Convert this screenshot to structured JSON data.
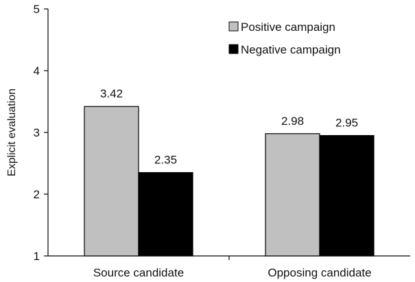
{
  "chart_data": {
    "type": "bar",
    "categories": [
      "Source candidate",
      "Opposing candidate"
    ],
    "series": [
      {
        "name": "Positive campaign",
        "values": [
          3.42,
          2.98
        ],
        "color": "#c0c0c0"
      },
      {
        "name": "Negative campaign",
        "values": [
          2.35,
          2.95
        ],
        "color": "#000000"
      }
    ],
    "data_labels": [
      [
        "3.42",
        "2.98"
      ],
      [
        "2.35",
        "2.95"
      ]
    ],
    "ylabel": "Explicit evaluation",
    "ylim": [
      1,
      5
    ],
    "yticks": [
      1,
      2,
      3,
      4,
      5
    ],
    "grid": false,
    "legend_position": "top-right"
  }
}
